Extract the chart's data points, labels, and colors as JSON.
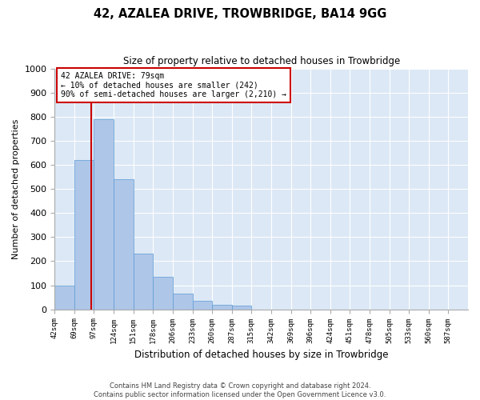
{
  "title": "42, AZALEA DRIVE, TROWBRIDGE, BA14 9GG",
  "subtitle": "Size of property relative to detached houses in Trowbridge",
  "xlabel": "Distribution of detached houses by size in Trowbridge",
  "ylabel": "Number of detached properties",
  "bin_labels": [
    "42sqm",
    "69sqm",
    "97sqm",
    "124sqm",
    "151sqm",
    "178sqm",
    "206sqm",
    "233sqm",
    "260sqm",
    "287sqm",
    "315sqm",
    "342sqm",
    "369sqm",
    "396sqm",
    "424sqm",
    "451sqm",
    "478sqm",
    "505sqm",
    "533sqm",
    "560sqm",
    "587sqm"
  ],
  "bar_values": [
    100,
    620,
    790,
    540,
    230,
    135,
    65,
    35,
    20,
    15,
    0,
    0,
    0,
    0,
    0,
    0,
    0,
    0,
    0,
    0
  ],
  "bar_color": "#aec6e8",
  "bar_edge_color": "#5b9bd5",
  "background_color": "#dce8f5",
  "ylim": [
    0,
    1000
  ],
  "yticks": [
    0,
    100,
    200,
    300,
    400,
    500,
    600,
    700,
    800,
    900,
    1000
  ],
  "red_line_x": 1.36,
  "annotation_text": "42 AZALEA DRIVE: 79sqm\n← 10% of detached houses are smaller (242)\n90% of semi-detached houses are larger (2,210) →",
  "annotation_box_color": "#ffffff",
  "annotation_border_color": "#cc0000",
  "footer_line1": "Contains HM Land Registry data © Crown copyright and database right 2024.",
  "footer_line2": "Contains public sector information licensed under the Open Government Licence v3.0."
}
